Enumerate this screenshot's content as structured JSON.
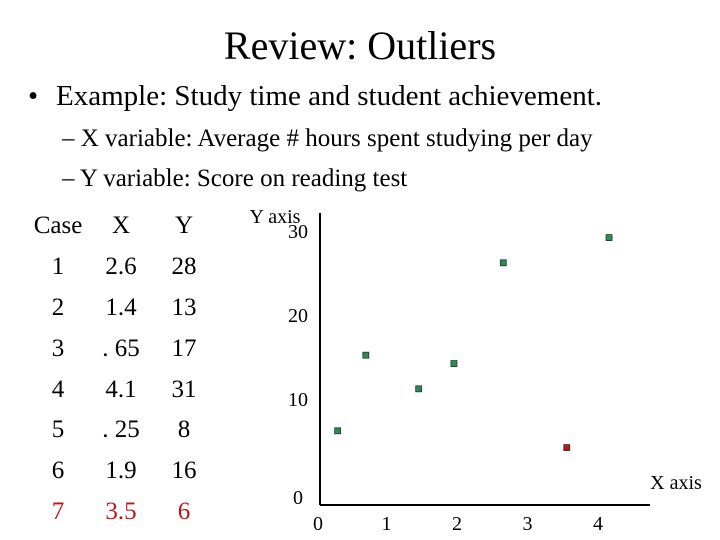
{
  "slide": {
    "title": "Review:  Outliers",
    "bullet": "Example:  Study time and student achievement.",
    "sub_items": [
      "– X variable:  Average # hours spent studying per day",
      "– Y variable:  Score on reading test"
    ]
  },
  "table": {
    "headers": [
      "Case",
      "X",
      "Y"
    ],
    "rows": [
      {
        "case": "1",
        "x": "2.6",
        "y": "28"
      },
      {
        "case": "2",
        "x": "1.4",
        "y": "13"
      },
      {
        "case": "3",
        "x": ". 65",
        "y": "17"
      },
      {
        "case": "4",
        "x": "4.1",
        "y": "31"
      },
      {
        "case": "5",
        "x": ". 25",
        "y": "8"
      },
      {
        "case": "6",
        "x": "1.9",
        "y": "16"
      },
      {
        "case": "7",
        "x": "3.5",
        "y": "6"
      }
    ],
    "highlight_color": "#c0141b"
  },
  "chart_data": {
    "type": "scatter",
    "ylabel": "Y axis",
    "xlabel": "X axis",
    "xlim": [
      0,
      4.4
    ],
    "ylim": [
      0,
      32
    ],
    "x_ticks": [
      "0",
      "1",
      "2",
      "3",
      "4"
    ],
    "y_ticks": [
      "0",
      "10",
      "20",
      "30"
    ],
    "points": [
      {
        "x": 2.6,
        "y": 28,
        "color": "#2e8b57"
      },
      {
        "x": 1.4,
        "y": 13,
        "color": "#2e8b57"
      },
      {
        "x": 0.65,
        "y": 17,
        "color": "#2e8b57"
      },
      {
        "x": 4.1,
        "y": 31,
        "color": "#2e8b57"
      },
      {
        "x": 0.25,
        "y": 8,
        "color": "#2e8b57"
      },
      {
        "x": 1.9,
        "y": 16,
        "color": "#2e8b57"
      },
      {
        "x": 3.5,
        "y": 6,
        "color": "#c0141b"
      }
    ]
  }
}
